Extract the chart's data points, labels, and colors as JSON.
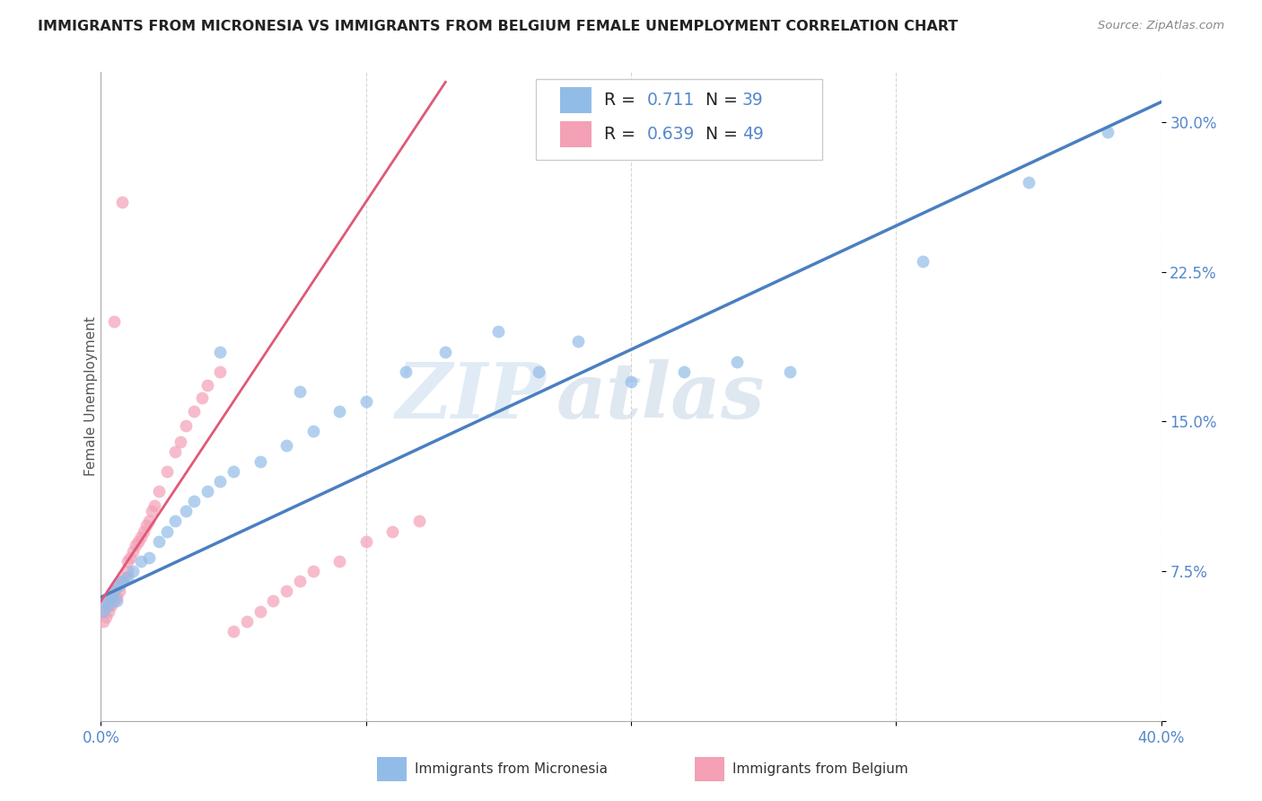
{
  "title": "IMMIGRANTS FROM MICRONESIA VS IMMIGRANTS FROM BELGIUM FEMALE UNEMPLOYMENT CORRELATION CHART",
  "source": "Source: ZipAtlas.com",
  "ylabel_label": "Female Unemployment",
  "x_min": 0.0,
  "x_max": 0.4,
  "y_min": 0.0,
  "y_max": 0.325,
  "blue_R": 0.711,
  "blue_N": 39,
  "pink_R": 0.639,
  "pink_N": 49,
  "blue_color": "#92bce8",
  "pink_color": "#f4a0b5",
  "blue_line_color": "#4a7fc1",
  "pink_line_color": "#e05878",
  "blue_label": "Immigrants from Micronesia",
  "pink_label": "Immigrants from Belgium",
  "watermark_zip": "ZIP",
  "watermark_atlas": "atlas",
  "grid_color": "#cccccc",
  "tick_color": "#5588cc",
  "title_color": "#222222",
  "source_color": "#888888",
  "blue_points_x": [
    0.001,
    0.002,
    0.003,
    0.004,
    0.005,
    0.006,
    0.007,
    0.008,
    0.01,
    0.012,
    0.015,
    0.018,
    0.022,
    0.025,
    0.028,
    0.032,
    0.035,
    0.04,
    0.045,
    0.05,
    0.06,
    0.07,
    0.08,
    0.09,
    0.1,
    0.115,
    0.13,
    0.15,
    0.165,
    0.18,
    0.2,
    0.22,
    0.24,
    0.26,
    0.31,
    0.35,
    0.38,
    0.045,
    0.075
  ],
  "blue_points_y": [
    0.055,
    0.06,
    0.058,
    0.062,
    0.065,
    0.06,
    0.068,
    0.07,
    0.072,
    0.075,
    0.08,
    0.082,
    0.09,
    0.095,
    0.1,
    0.105,
    0.11,
    0.115,
    0.12,
    0.125,
    0.13,
    0.138,
    0.145,
    0.155,
    0.16,
    0.175,
    0.185,
    0.195,
    0.175,
    0.19,
    0.17,
    0.175,
    0.18,
    0.175,
    0.23,
    0.27,
    0.295,
    0.185,
    0.165
  ],
  "pink_points_x": [
    0.001,
    0.001,
    0.002,
    0.002,
    0.003,
    0.003,
    0.004,
    0.004,
    0.005,
    0.005,
    0.006,
    0.006,
    0.007,
    0.008,
    0.009,
    0.01,
    0.01,
    0.011,
    0.012,
    0.013,
    0.014,
    0.015,
    0.016,
    0.017,
    0.018,
    0.019,
    0.02,
    0.022,
    0.025,
    0.028,
    0.03,
    0.032,
    0.035,
    0.038,
    0.04,
    0.045,
    0.05,
    0.055,
    0.06,
    0.065,
    0.07,
    0.075,
    0.08,
    0.09,
    0.1,
    0.11,
    0.12,
    0.005,
    0.008
  ],
  "pink_points_y": [
    0.05,
    0.055,
    0.052,
    0.058,
    0.055,
    0.06,
    0.058,
    0.062,
    0.06,
    0.065,
    0.062,
    0.068,
    0.065,
    0.07,
    0.072,
    0.075,
    0.08,
    0.082,
    0.085,
    0.088,
    0.09,
    0.092,
    0.095,
    0.098,
    0.1,
    0.105,
    0.108,
    0.115,
    0.125,
    0.135,
    0.14,
    0.148,
    0.155,
    0.162,
    0.168,
    0.175,
    0.045,
    0.05,
    0.055,
    0.06,
    0.065,
    0.07,
    0.075,
    0.08,
    0.09,
    0.095,
    0.1,
    0.2,
    0.26
  ],
  "pink_line_x0": 0.0,
  "pink_line_y0": 0.06,
  "pink_line_x1": 0.13,
  "pink_line_y1": 0.32,
  "blue_line_x0": 0.0,
  "blue_line_y0": 0.062,
  "blue_line_x1": 0.4,
  "blue_line_y1": 0.31
}
